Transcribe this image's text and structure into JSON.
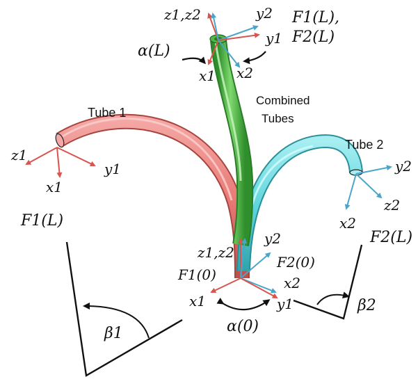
{
  "labels": {
    "tube1": "Tube 1",
    "tube2": "Tube 2",
    "combined_line1": "Combined",
    "combined_line2": "Tubes",
    "tip_frame_line1": "F1(L),",
    "tip_frame_line2": "F2(L)",
    "tip_alpha": "α(L)",
    "tip_z": "z1,z2",
    "tip_y2": "y2",
    "tip_y1": "y1",
    "tip_x1": "x1",
    "tip_x2": "x2",
    "t1_z1": "z1",
    "t1_x1": "x1",
    "t1_y1": "y1",
    "t1_frame": "F1(L)",
    "t2_y2": "y2",
    "t2_z2": "z2",
    "t2_x2": "x2",
    "t2_frame": "F2(L)",
    "base_z": "z1,z2",
    "base_y2": "y2",
    "base_F2": "F2(0)",
    "base_F1": "F1(0)",
    "base_x1": "x1",
    "base_x2": "x2",
    "base_y1": "y1",
    "base_alpha": "α(0)",
    "beta1": "β1",
    "beta2": "β2"
  },
  "colors": {
    "tube1": "#e87a76",
    "tube2": "#5fd6dc",
    "combined": "#4fb84a",
    "axis_red": "#d9534f",
    "axis_blue": "#4aa6c9"
  }
}
